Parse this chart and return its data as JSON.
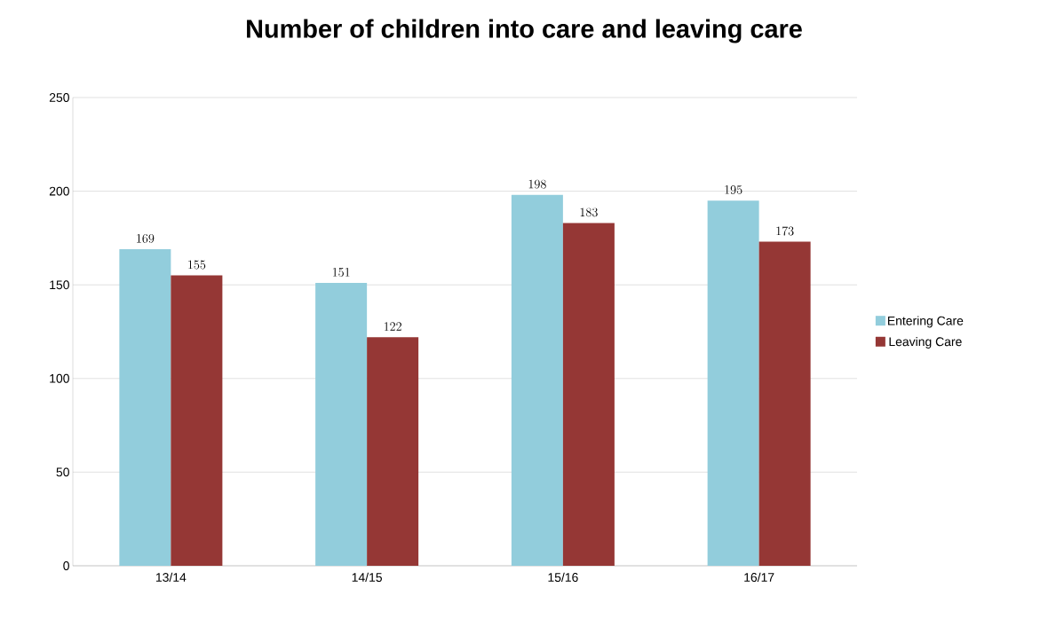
{
  "chart_data": {
    "type": "bar",
    "title": "Number of children into care and leaving care",
    "categories": [
      "13/14",
      "14/15",
      "15/16",
      "16/17"
    ],
    "series": [
      {
        "name": "Entering Care",
        "color": "#92cddc",
        "values": [
          169,
          151,
          198,
          195
        ]
      },
      {
        "name": "Leaving Care",
        "color": "#953735",
        "values": [
          155,
          122,
          183,
          173
        ]
      }
    ],
    "ylim": [
      0,
      250
    ],
    "yticks": [
      0,
      50,
      100,
      150,
      200,
      250
    ],
    "grid": "y",
    "legend": "right",
    "data_labels": true
  }
}
